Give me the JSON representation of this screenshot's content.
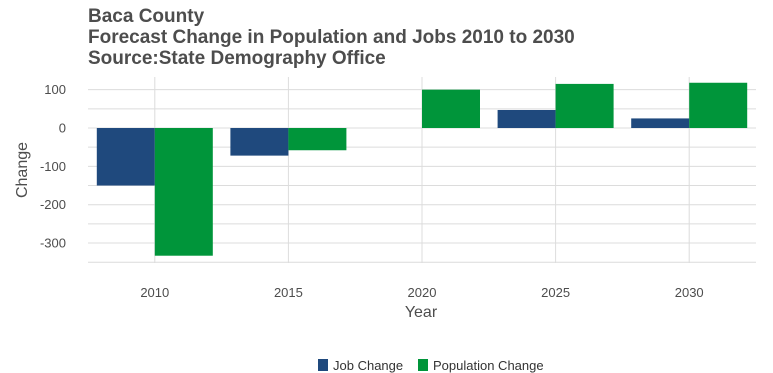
{
  "chart_data": {
    "type": "bar",
    "title": "Baca County",
    "subtitle": "Forecast Change in Population and Jobs 2010 to 2030",
    "source": "Source:State Demography Office",
    "xlabel": "Year",
    "ylabel": "Change",
    "categories": [
      "2010",
      "2015",
      "2020",
      "2025",
      "2030"
    ],
    "series": [
      {
        "name": "Job Change",
        "color": "#1f497d",
        "values": [
          -150,
          -72,
          0,
          47,
          25
        ]
      },
      {
        "name": "Population Change",
        "color": "#00953a",
        "values": [
          -333,
          -58,
          100,
          115,
          118
        ]
      }
    ],
    "ylim": [
      -352,
      133
    ],
    "yticks": [
      100,
      0,
      -100,
      -200,
      -300
    ],
    "ytick_labels": [
      "100",
      "0",
      "-100",
      "-200",
      "-300"
    ],
    "grid": true,
    "legend_position": "bottom"
  }
}
